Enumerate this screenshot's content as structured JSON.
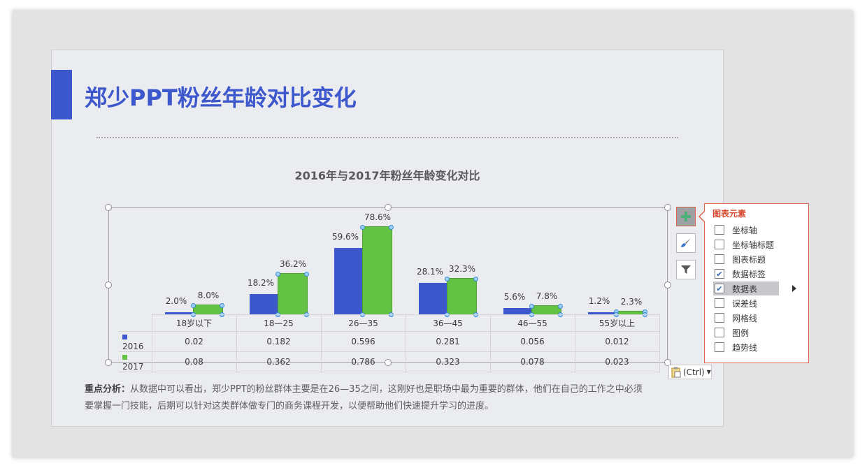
{
  "slide": {
    "title": "郑少PPT粉丝年龄对比变化",
    "analysis_label": "重点分析：",
    "analysis_text": "从数据中可以看出，郑少PPT的粉丝群体主要是在26—35之间，这刚好也是职场中最为重要的群体，他们在自己的工作之中必须要掌握一门技能，后期可以针对这类群体做专门的商务课程开发，以便帮助他们快速提升学习的进度。"
  },
  "colors": {
    "accent": "#3d57cc",
    "series_2016": "#3d57cc",
    "series_2017": "#63c244",
    "popup_border": "#d8664d"
  },
  "chart_data": {
    "type": "bar",
    "title": "2016年与2017年粉丝年龄变化对比",
    "categories": [
      "18岁以下",
      "18—25",
      "26—35",
      "36—45",
      "46—55",
      "55岁以上"
    ],
    "series": [
      {
        "name": "2016",
        "values": [
          0.02,
          0.182,
          0.596,
          0.281,
          0.056,
          0.012
        ],
        "labels": [
          "2.0%",
          "18.2%",
          "59.6%",
          "28.1%",
          "5.6%",
          "1.2%"
        ]
      },
      {
        "name": "2017",
        "values": [
          0.08,
          0.362,
          0.786,
          0.323,
          0.078,
          0.023
        ],
        "labels": [
          "8.0%",
          "36.2%",
          "78.6%",
          "32.3%",
          "7.8%",
          "2.3%"
        ]
      }
    ],
    "table_values": {
      "2016": [
        "0.02",
        "0.182",
        "0.596",
        "0.281",
        "0.056",
        "0.012"
      ],
      "2017": [
        "0.08",
        "0.362",
        "0.786",
        "0.323",
        "0.078",
        "0.023"
      ]
    },
    "xlabel": "",
    "ylabel": "",
    "grid": false,
    "data_labels": true,
    "data_table": true,
    "ylim": [
      0,
      0.9
    ]
  },
  "side_buttons": [
    {
      "name": "chart-elements",
      "icon": "plus-icon"
    },
    {
      "name": "chart-styles",
      "icon": "brush-icon"
    },
    {
      "name": "chart-filters",
      "icon": "filter-icon"
    }
  ],
  "popup": {
    "title": "图表元素",
    "items": [
      {
        "label": "坐标轴",
        "checked": false
      },
      {
        "label": "坐标轴标题",
        "checked": false
      },
      {
        "label": "图表标题",
        "checked": false
      },
      {
        "label": "数据标签",
        "checked": true
      },
      {
        "label": "数据表",
        "checked": true,
        "highlighted": true,
        "submenu": true
      },
      {
        "label": "误差线",
        "checked": false
      },
      {
        "label": "网格线",
        "checked": false
      },
      {
        "label": "图例",
        "checked": false
      },
      {
        "label": "趋势线",
        "checked": false
      }
    ]
  },
  "paste_options": {
    "label": "(Ctrl)",
    "icon": "clipboard-icon"
  }
}
